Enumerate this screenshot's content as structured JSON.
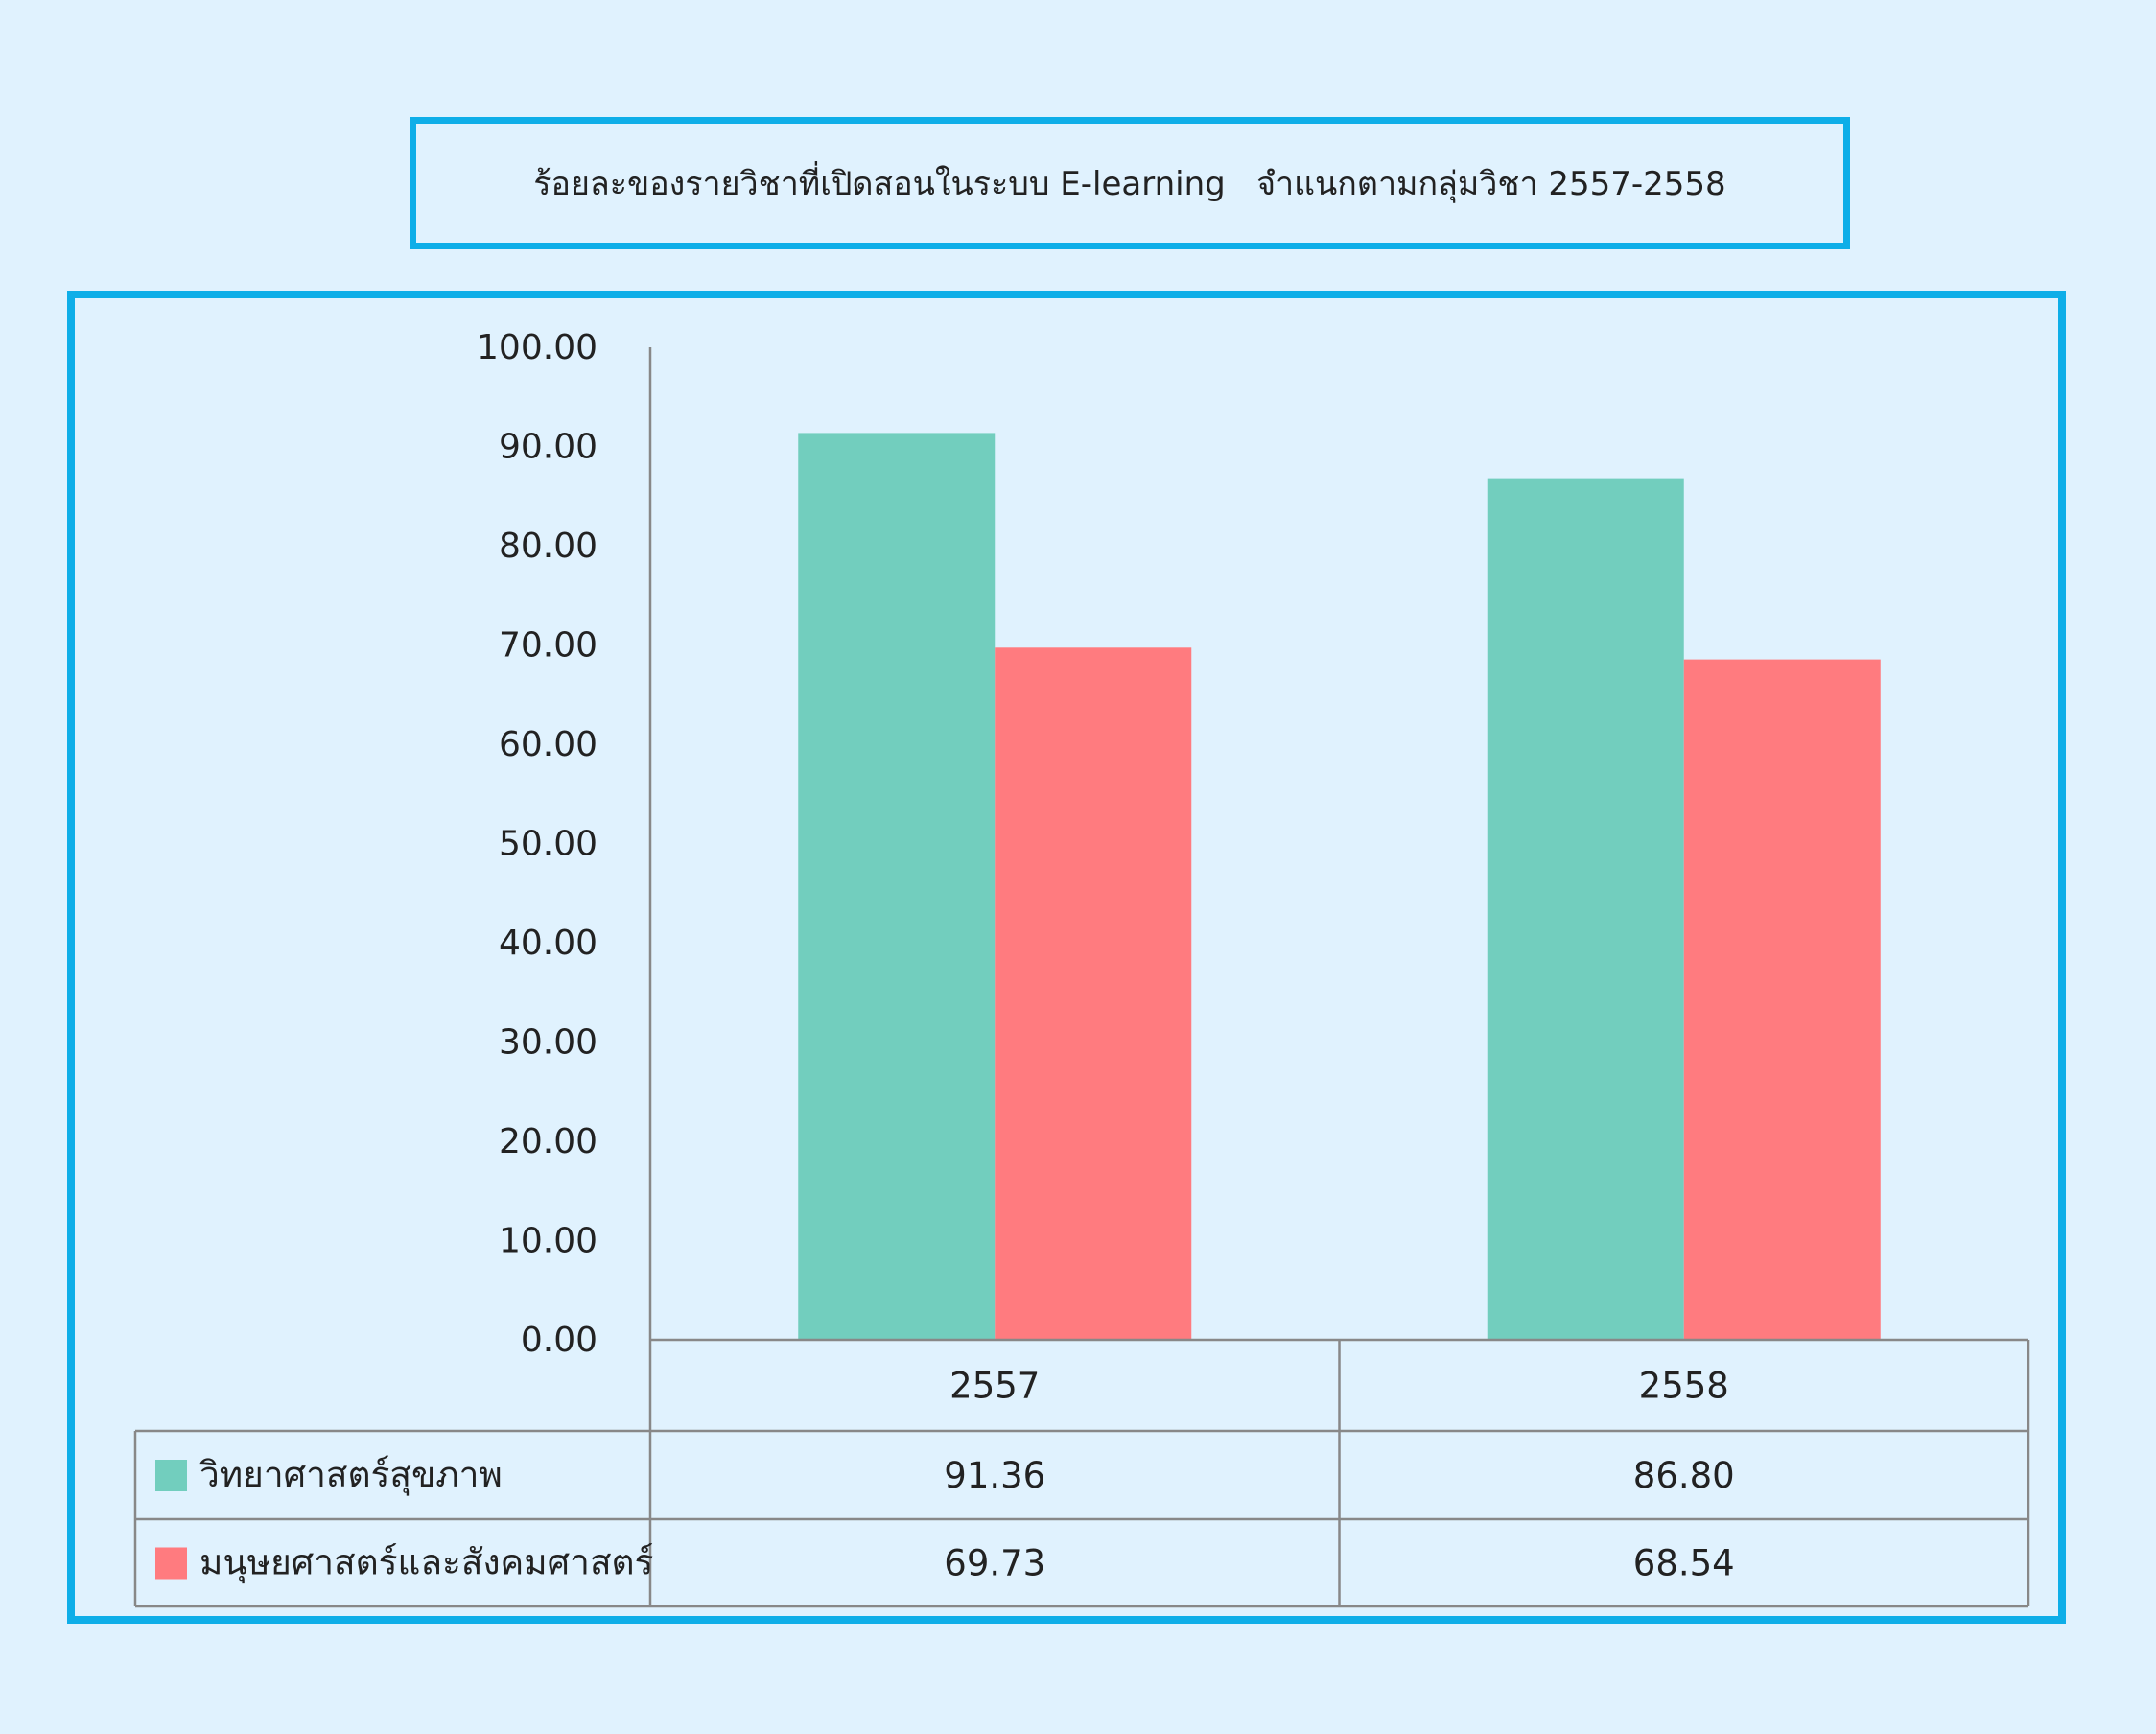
{
  "chart_data": {
    "type": "bar",
    "title": "ร้อยละของรายวิชาที่เปิดสอนในระบบ E-learning   จำแนกตามกลุ่มวิชา 2557-2558",
    "categories": [
      "2557",
      "2558"
    ],
    "series": [
      {
        "name": "วิทยาศาสตร์สุขภาพ",
        "values": [
          91.36,
          86.8
        ],
        "display": [
          "91.36",
          "86.80"
        ],
        "color": "#72cebe"
      },
      {
        "name": "มนุษยศาสตร์และสังคมศาสตร์",
        "values": [
          69.73,
          68.54
        ],
        "display": [
          "69.73",
          "68.54"
        ],
        "color": "#ff7b7f"
      }
    ],
    "ylim": [
      0,
      100
    ],
    "y_ticks": [
      "100.00",
      "90.00",
      "80.00",
      "70.00",
      "60.00",
      "50.00",
      "40.00",
      "30.00",
      "20.00",
      "10.00",
      "0.00"
    ],
    "legend": "data-table-below",
    "grid": false
  }
}
